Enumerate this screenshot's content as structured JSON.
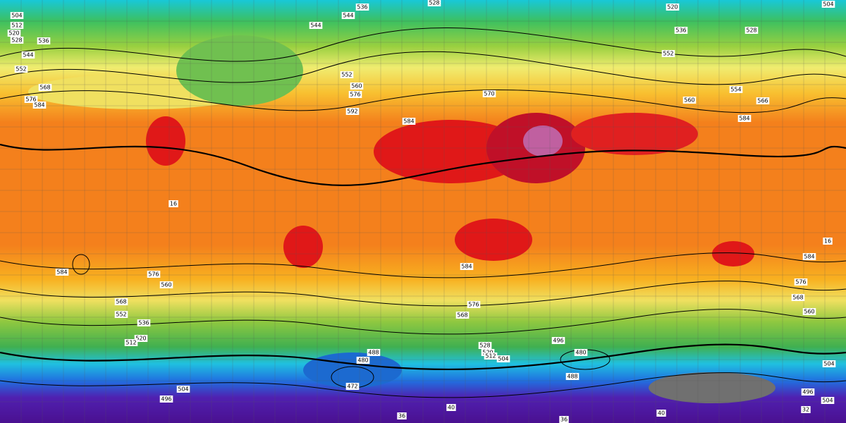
{
  "map": {
    "contour_labels": [
      "504",
      "512",
      "520",
      "528",
      "536",
      "544",
      "552",
      "568",
      "576",
      "584",
      "544",
      "536",
      "544",
      "528",
      "552",
      "560",
      "576",
      "592",
      "584",
      "570",
      "520",
      "536",
      "552",
      "528",
      "554",
      "560",
      "566",
      "584",
      "504",
      "576",
      "560",
      "568",
      "552",
      "536",
      "520",
      "512",
      "584",
      "584",
      "576",
      "568",
      "528",
      "520",
      "512",
      "504",
      "496",
      "480",
      "488",
      "480",
      "472",
      "488",
      "504",
      "496",
      "584",
      "576",
      "568",
      "560",
      "504",
      "496",
      "504",
      "16",
      "16",
      "32",
      "40",
      "36",
      "40",
      "36"
    ]
  }
}
